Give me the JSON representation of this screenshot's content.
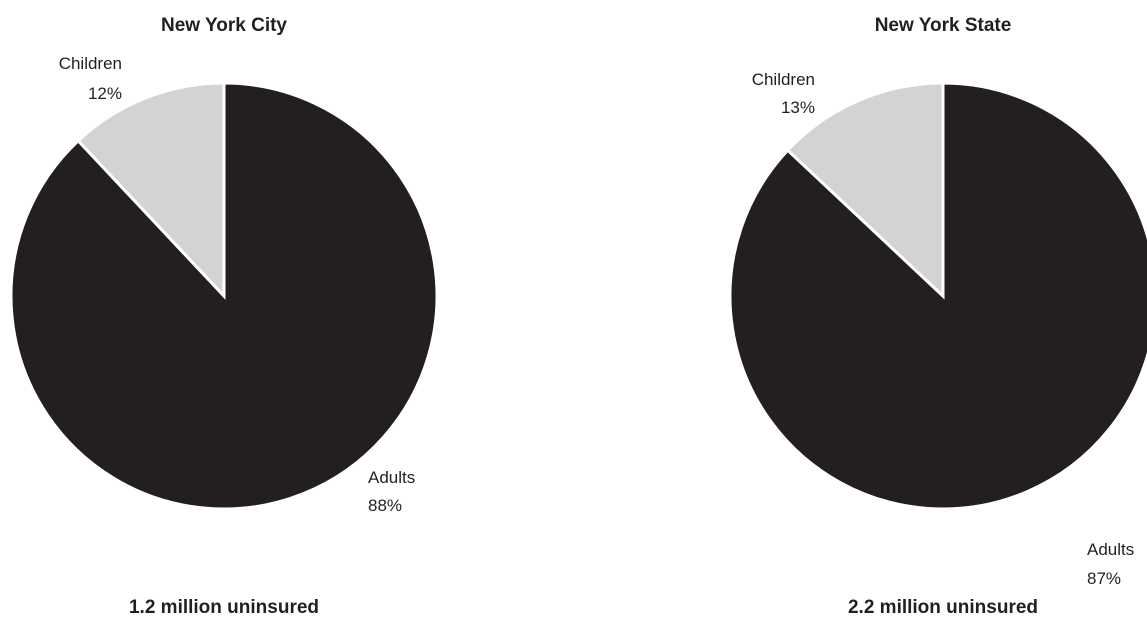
{
  "colors": {
    "adults": "#231f20",
    "children": "#d1d3d4",
    "slice_border": "#ffffff"
  },
  "chart_data": [
    {
      "type": "pie",
      "title": "New York City",
      "footer": "1.2 million uninsured",
      "slices": [
        {
          "label": "Children",
          "value": 12,
          "display": "12%"
        },
        {
          "label": "Adults",
          "value": 88,
          "display": "88%"
        }
      ]
    },
    {
      "type": "pie",
      "title": "New York State",
      "footer": "2.2 million uninsured",
      "slices": [
        {
          "label": "Children",
          "value": 13,
          "display": "13%"
        },
        {
          "label": "Adults",
          "value": 87,
          "display": "87%"
        }
      ]
    }
  ]
}
